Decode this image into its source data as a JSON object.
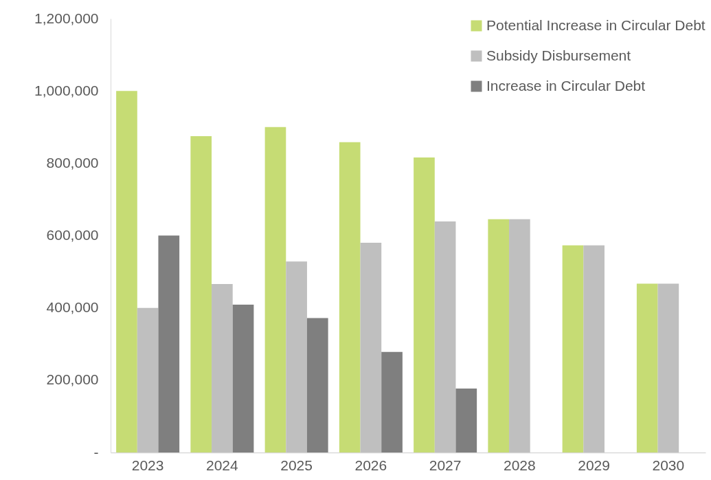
{
  "chart_data": {
    "type": "bar",
    "categories": [
      "2023",
      "2024",
      "2025",
      "2026",
      "2027",
      "2028",
      "2029",
      "2030"
    ],
    "series": [
      {
        "name": "Potential Increase in Circular Debt",
        "color": "#c6dc74",
        "values": [
          1000000,
          875000,
          900000,
          858000,
          816000,
          645000,
          573000,
          467000
        ]
      },
      {
        "name": "Subsidy Disbursement",
        "color": "#bfbfbf",
        "values": [
          400000,
          466000,
          528000,
          580000,
          639000,
          645000,
          573000,
          467000
        ]
      },
      {
        "name": "Increase in Circular Debt",
        "color": "#7f7f7f",
        "values": [
          600000,
          409000,
          372000,
          278000,
          177000,
          null,
          null,
          null
        ]
      }
    ],
    "ylim": [
      0,
      1200000
    ],
    "yticks": [
      {
        "value": 0,
        "label": "-"
      },
      {
        "value": 200000,
        "label": "200,000"
      },
      {
        "value": 400000,
        "label": "400,000"
      },
      {
        "value": 600000,
        "label": "600,000"
      },
      {
        "value": 800000,
        "label": "800,000"
      },
      {
        "value": 1000000,
        "label": "1,000,000"
      },
      {
        "value": 1200000,
        "label": "1,200,000"
      }
    ],
    "grid": false,
    "legend": "top right"
  }
}
